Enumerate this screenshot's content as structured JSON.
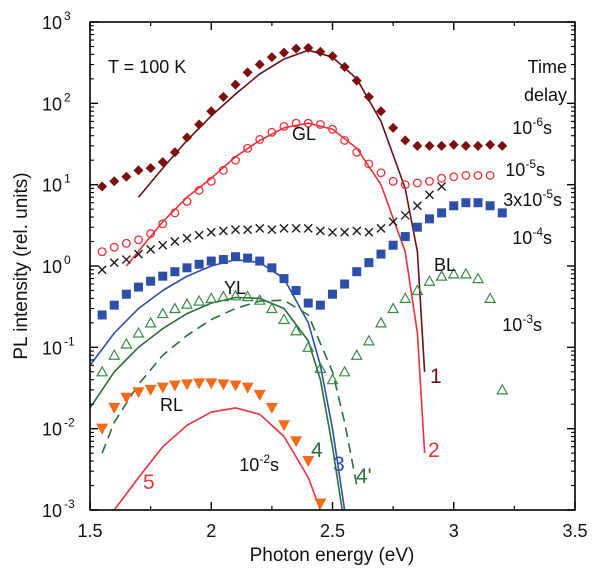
{
  "chart_data": {
    "type": "scatter",
    "xlabel": "Photon energy (eV)",
    "ylabel": "PL intensity (rel. units)",
    "xlim": [
      1.5,
      3.5
    ],
    "ylim": [
      0.001,
      1000
    ],
    "yscale": "log",
    "x_ticks": [
      {
        "value": 1.5,
        "label": "1.5"
      },
      {
        "value": 2.0,
        "label": "2"
      },
      {
        "value": 2.5,
        "label": "2.5"
      },
      {
        "value": 3.0,
        "label": "3"
      },
      {
        "value": 3.5,
        "label": "3.5"
      }
    ],
    "y_ticks": [
      {
        "value": 0.001,
        "base": "10",
        "exp": "-3"
      },
      {
        "value": 0.01,
        "base": "10",
        "exp": "-2"
      },
      {
        "value": 0.1,
        "base": "10",
        "exp": "-1"
      },
      {
        "value": 1,
        "base": "10",
        "exp": "0"
      },
      {
        "value": 10,
        "base": "10",
        "exp": "1"
      },
      {
        "value": 100,
        "base": "10",
        "exp": "2"
      },
      {
        "value": 1000,
        "base": "10",
        "exp": "3"
      }
    ],
    "annotations": {
      "temperature": "T = 100 K",
      "time_delay_line1": "Time",
      "time_delay_line2": "delay",
      "band_GL": "GL",
      "band_YL": "YL",
      "band_BL": "BL",
      "band_RL": "RL"
    },
    "scatter_series": [
      {
        "delay": {
          "pre": "",
          "base": "10",
          "exp": "-6",
          "unit": "s"
        },
        "marker": "diamond",
        "color": "#7a1010",
        "points": [
          [
            1.55,
            9.5
          ],
          [
            1.6,
            11
          ],
          [
            1.65,
            12.5
          ],
          [
            1.7,
            15
          ],
          [
            1.75,
            16
          ],
          [
            1.8,
            19
          ],
          [
            1.85,
            25
          ],
          [
            1.9,
            38
          ],
          [
            1.95,
            55
          ],
          [
            2.0,
            80
          ],
          [
            2.05,
            120
          ],
          [
            2.1,
            170
          ],
          [
            2.15,
            240
          ],
          [
            2.2,
            300
          ],
          [
            2.25,
            370
          ],
          [
            2.3,
            420
          ],
          [
            2.35,
            470
          ],
          [
            2.4,
            480
          ],
          [
            2.45,
            430
          ],
          [
            2.5,
            380
          ],
          [
            2.55,
            280
          ],
          [
            2.6,
            190
          ],
          [
            2.65,
            120
          ],
          [
            2.7,
            80
          ],
          [
            2.75,
            50
          ],
          [
            2.8,
            35
          ],
          [
            2.85,
            30
          ],
          [
            2.9,
            30
          ],
          [
            2.95,
            30
          ],
          [
            3.0,
            31
          ],
          [
            3.05,
            30
          ],
          [
            3.1,
            30
          ],
          [
            3.15,
            31
          ],
          [
            3.2,
            30
          ]
        ]
      },
      {
        "delay": {
          "pre": "",
          "base": "10",
          "exp": "-5",
          "unit": "s"
        },
        "marker": "circle",
        "color": "#e8333a",
        "points": [
          [
            1.55,
            1.5
          ],
          [
            1.6,
            1.7
          ],
          [
            1.65,
            1.9
          ],
          [
            1.7,
            2.1
          ],
          [
            1.75,
            2.5
          ],
          [
            1.8,
            3.3
          ],
          [
            1.85,
            4.5
          ],
          [
            1.9,
            6.2
          ],
          [
            1.95,
            8.5
          ],
          [
            2.0,
            11
          ],
          [
            2.05,
            15
          ],
          [
            2.1,
            20
          ],
          [
            2.15,
            28
          ],
          [
            2.2,
            36
          ],
          [
            2.25,
            44
          ],
          [
            2.3,
            52
          ],
          [
            2.35,
            57
          ],
          [
            2.4,
            57
          ],
          [
            2.45,
            55
          ],
          [
            2.5,
            48
          ],
          [
            2.55,
            35
          ],
          [
            2.6,
            25
          ],
          [
            2.65,
            18
          ],
          [
            2.7,
            14
          ],
          [
            2.75,
            11
          ],
          [
            2.8,
            10
          ],
          [
            2.85,
            10.5
          ],
          [
            2.9,
            11
          ],
          [
            2.95,
            12
          ],
          [
            3.0,
            12.5
          ],
          [
            3.05,
            13
          ],
          [
            3.1,
            13
          ],
          [
            3.15,
            13
          ]
        ]
      },
      {
        "delay": {
          "pre": "3x",
          "base": "10",
          "exp": "-5",
          "unit": "s"
        },
        "marker": "cross",
        "color": "#1a1a1a",
        "points": [
          [
            1.55,
            0.9
          ],
          [
            1.6,
            1.1
          ],
          [
            1.65,
            1.2
          ],
          [
            1.7,
            1.4
          ],
          [
            1.75,
            1.6
          ],
          [
            1.8,
            1.8
          ],
          [
            1.85,
            2.0
          ],
          [
            1.9,
            2.2
          ],
          [
            1.95,
            2.4
          ],
          [
            2.0,
            2.6
          ],
          [
            2.05,
            2.7
          ],
          [
            2.1,
            2.8
          ],
          [
            2.15,
            2.8
          ],
          [
            2.2,
            2.9
          ],
          [
            2.25,
            2.8
          ],
          [
            2.3,
            2.9
          ],
          [
            2.35,
            2.9
          ],
          [
            2.4,
            2.9
          ],
          [
            2.45,
            2.7
          ],
          [
            2.5,
            2.6
          ],
          [
            2.55,
            2.6
          ],
          [
            2.6,
            2.7
          ],
          [
            2.65,
            2.6
          ],
          [
            2.7,
            2.9
          ],
          [
            2.75,
            3.5
          ],
          [
            2.8,
            4.2
          ],
          [
            2.85,
            5.5
          ],
          [
            2.9,
            7.5
          ],
          [
            2.95,
            9.5
          ]
        ]
      },
      {
        "delay": {
          "pre": "",
          "base": "10",
          "exp": "-4",
          "unit": "s"
        },
        "marker": "square",
        "color": "#2e4fa8",
        "points": [
          [
            1.55,
            0.25
          ],
          [
            1.6,
            0.33
          ],
          [
            1.65,
            0.45
          ],
          [
            1.7,
            0.55
          ],
          [
            1.75,
            0.65
          ],
          [
            1.8,
            0.75
          ],
          [
            1.85,
            0.85
          ],
          [
            1.9,
            0.95
          ],
          [
            1.95,
            1.05
          ],
          [
            2.0,
            1.15
          ],
          [
            2.05,
            1.2
          ],
          [
            2.1,
            1.3
          ],
          [
            2.15,
            1.25
          ],
          [
            2.2,
            1.15
          ],
          [
            2.25,
            0.95
          ],
          [
            2.3,
            0.7
          ],
          [
            2.35,
            0.5
          ],
          [
            2.4,
            0.35
          ],
          [
            2.45,
            0.33
          ],
          [
            2.5,
            0.45
          ],
          [
            2.55,
            0.6
          ],
          [
            2.6,
            0.85
          ],
          [
            2.65,
            1.1
          ],
          [
            2.7,
            1.4
          ],
          [
            2.75,
            1.8
          ],
          [
            2.8,
            2.3
          ],
          [
            2.85,
            3.0
          ],
          [
            2.9,
            3.8
          ],
          [
            2.95,
            4.5
          ],
          [
            3.0,
            5.5
          ],
          [
            3.05,
            6.0
          ],
          [
            3.1,
            6.0
          ],
          [
            3.15,
            5.5
          ],
          [
            3.2,
            4.5
          ]
        ]
      },
      {
        "delay": {
          "pre": "",
          "base": "10",
          "exp": "-3",
          "unit": "s"
        },
        "marker": "triangle",
        "color": "#3a8a46",
        "points": [
          [
            1.55,
            0.05
          ],
          [
            1.6,
            0.08
          ],
          [
            1.65,
            0.11
          ],
          [
            1.7,
            0.15
          ],
          [
            1.75,
            0.2
          ],
          [
            1.8,
            0.26
          ],
          [
            1.85,
            0.3
          ],
          [
            1.9,
            0.34
          ],
          [
            1.95,
            0.37
          ],
          [
            2.0,
            0.4
          ],
          [
            2.05,
            0.42
          ],
          [
            2.1,
            0.43
          ],
          [
            2.15,
            0.42
          ],
          [
            2.2,
            0.38
          ],
          [
            2.25,
            0.3
          ],
          [
            2.3,
            0.22
          ],
          [
            2.35,
            0.16
          ],
          [
            2.4,
            0.1
          ],
          [
            2.45,
            0.055
          ],
          [
            2.5,
            0.04
          ],
          [
            2.55,
            0.05
          ],
          [
            2.6,
            0.08
          ],
          [
            2.65,
            0.12
          ],
          [
            2.7,
            0.2
          ],
          [
            2.75,
            0.3
          ],
          [
            2.8,
            0.4
          ],
          [
            2.85,
            0.5
          ],
          [
            2.9,
            0.65
          ],
          [
            2.95,
            0.75
          ],
          [
            3.0,
            0.8
          ],
          [
            3.05,
            0.8
          ],
          [
            3.1,
            0.7
          ],
          [
            3.15,
            0.4
          ],
          [
            3.2,
            0.03
          ]
        ]
      },
      {
        "delay": {
          "pre": "",
          "base": "10",
          "exp": "-2",
          "unit": "s"
        },
        "marker": "triangle-down",
        "color": "#f26a1b",
        "points": [
          [
            1.55,
            0.01
          ],
          [
            1.6,
            0.018
          ],
          [
            1.65,
            0.024
          ],
          [
            1.7,
            0.028
          ],
          [
            1.75,
            0.03
          ],
          [
            1.8,
            0.032
          ],
          [
            1.85,
            0.034
          ],
          [
            1.9,
            0.035
          ],
          [
            1.95,
            0.036
          ],
          [
            2.0,
            0.036
          ],
          [
            2.05,
            0.035
          ],
          [
            2.1,
            0.034
          ],
          [
            2.15,
            0.032
          ],
          [
            2.2,
            0.026
          ],
          [
            2.25,
            0.018
          ],
          [
            2.3,
            0.011
          ],
          [
            2.35,
            0.007
          ],
          [
            2.4,
            0.004
          ],
          [
            2.45,
            0.0012
          ]
        ]
      }
    ],
    "fit_curves": [
      {
        "label": "1",
        "color": "#6b1010",
        "dash": false,
        "x": [
          1.7,
          1.8,
          1.9,
          2.0,
          2.1,
          2.2,
          2.3,
          2.4,
          2.5,
          2.6,
          2.7,
          2.8,
          2.85,
          2.88
        ],
        "y": [
          7,
          16,
          35,
          70,
          130,
          230,
          350,
          450,
          370,
          200,
          60,
          9,
          1.5,
          0.05
        ]
      },
      {
        "label": "2",
        "color": "#e8333a",
        "dash": false,
        "x": [
          1.65,
          1.8,
          1.9,
          2.0,
          2.1,
          2.2,
          2.3,
          2.4,
          2.5,
          2.6,
          2.7,
          2.8,
          2.85,
          2.88
        ],
        "y": [
          1.0,
          3.5,
          7,
          12,
          22,
          35,
          50,
          57,
          48,
          28,
          10,
          1.5,
          0.15,
          0.005
        ]
      },
      {
        "label": "3",
        "color": "#2e4fa8",
        "dash": false,
        "x": [
          1.5,
          1.6,
          1.7,
          1.8,
          1.9,
          2.0,
          2.1,
          2.2,
          2.3,
          2.4,
          2.45,
          2.5,
          2.55
        ],
        "y": [
          0.06,
          0.15,
          0.3,
          0.5,
          0.75,
          1.0,
          1.2,
          1.1,
          0.7,
          0.2,
          0.06,
          0.01,
          0.001
        ]
      },
      {
        "label": "4",
        "color": "#2a6e3a",
        "dash": false,
        "x": [
          1.5,
          1.6,
          1.7,
          1.8,
          1.9,
          2.0,
          2.1,
          2.2,
          2.3,
          2.4,
          2.45,
          2.5,
          2.54
        ],
        "y": [
          0.018,
          0.05,
          0.1,
          0.17,
          0.26,
          0.35,
          0.41,
          0.4,
          0.3,
          0.12,
          0.04,
          0.006,
          0.001
        ]
      },
      {
        "label": "4'",
        "color": "#2a6e3a",
        "dash": true,
        "x": [
          1.55,
          1.6,
          1.7,
          1.8,
          1.9,
          2.0,
          2.1,
          2.2,
          2.3,
          2.4,
          2.5,
          2.55,
          2.6
        ],
        "y": [
          0.005,
          0.012,
          0.035,
          0.08,
          0.14,
          0.22,
          0.3,
          0.37,
          0.38,
          0.25,
          0.05,
          0.012,
          0.002
        ]
      },
      {
        "label": "5",
        "color": "#e8333a",
        "dash": false,
        "x": [
          1.6,
          1.7,
          1.8,
          1.9,
          2.0,
          2.1,
          2.2,
          2.3,
          2.4,
          2.45
        ],
        "y": [
          0.001,
          0.0025,
          0.006,
          0.011,
          0.016,
          0.018,
          0.015,
          0.008,
          0.0025,
          0.001
        ]
      }
    ]
  }
}
